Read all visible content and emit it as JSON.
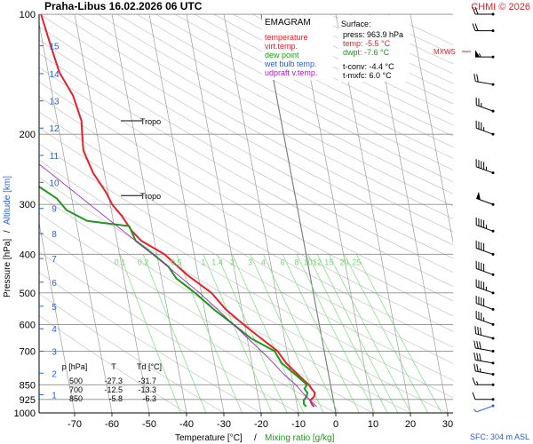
{
  "header": {
    "station_date": "Praha-Libus    16.02.2026 06 UTC",
    "credit": "CHMI © 2026"
  },
  "chart_data": {
    "type": "line",
    "diagram": "skew-T log-p",
    "legend": {
      "title": "EMAGRAM",
      "items": [
        {
          "label": "temperature",
          "color": "#e8202a"
        },
        {
          "label": "virt.temp.",
          "color": "#e8202a"
        },
        {
          "label": "dew point",
          "color": "#1a9a1a"
        },
        {
          "label": "wet bulb temp.",
          "color": "#2a5fd8"
        },
        {
          "label": "udpraft v.temp.",
          "color": "#a020c0"
        }
      ]
    },
    "surface_box": {
      "title": "Surface:",
      "rows": [
        {
          "text": "press: 963.9 hPa",
          "color": "#000000"
        },
        {
          "text": "temp: -5.5 °C",
          "color": "#e8202a"
        },
        {
          "text": "dwpt: -7.6 °C",
          "color": "#1a9a1a"
        },
        {
          "text": "t-conv: -4.4 °C",
          "color": "#000000"
        },
        {
          "text": "t-mxfc: 6.0 °C",
          "color": "#000000"
        }
      ]
    },
    "x_axis": {
      "label": "Temperature [°C]",
      "separator": "/",
      "label2": "Mixing ratio [g/kg]",
      "range": [
        -80,
        35
      ],
      "ticks": [
        -70,
        -60,
        -50,
        -40,
        -30,
        -20,
        -10,
        0,
        10,
        20,
        30
      ]
    },
    "y_axis": {
      "label": "Pressure [hPa]",
      "separator": "/",
      "label2": "Altitude [km]",
      "scale": "log",
      "range": [
        1000,
        100
      ],
      "ticks": [
        100,
        200,
        300,
        400,
        500,
        600,
        700,
        850,
        925,
        1000
      ],
      "altitude_km": [
        {
          "km": 1,
          "p": 900
        },
        {
          "km": 2,
          "p": 795
        },
        {
          "km": 3,
          "p": 700
        },
        {
          "km": 4,
          "p": 615
        },
        {
          "km": 5,
          "p": 540
        },
        {
          "km": 6,
          "p": 470
        },
        {
          "km": 7,
          "p": 410
        },
        {
          "km": 8,
          "p": 355
        },
        {
          "km": 9,
          "p": 307
        },
        {
          "km": 10,
          "p": 264
        },
        {
          "km": 11,
          "p": 226
        },
        {
          "km": 12,
          "p": 193
        },
        {
          "km": 13,
          "p": 165
        },
        {
          "km": 14,
          "p": 141
        },
        {
          "km": 15,
          "p": 120
        }
      ]
    },
    "mixing_ratio_labels": {
      "values": [
        "0.1",
        "0.2",
        "0.5",
        "1",
        "1.4",
        "2",
        "3",
        "4",
        "6",
        "8",
        "10",
        "12",
        "15",
        "20",
        "25"
      ],
      "pressure": 400
    },
    "tropopause": [
      {
        "label": "Tropo",
        "p": 185
      },
      {
        "label": "Tropo",
        "p": 285
      }
    ],
    "mxws_label": "MXWS",
    "table": {
      "headers": [
        "p [hPa]",
        "T",
        "Td [°C]"
      ],
      "rows": [
        [
          "500",
          "-27.3",
          "-31.7"
        ],
        [
          "700",
          "-12.5",
          "-13.3"
        ],
        [
          "850",
          "-5.8",
          "-6.3"
        ]
      ]
    },
    "sfc_label": "SFC: 304 m ASL",
    "series": [
      {
        "name": "temperature",
        "color": "#e8202a",
        "points": [
          [
            964,
            -5.5
          ],
          [
            950,
            -6.0
          ],
          [
            930,
            -6.2
          ],
          [
            910,
            -5.0
          ],
          [
            890,
            -4.6
          ],
          [
            870,
            -5.3
          ],
          [
            850,
            -5.8
          ],
          [
            800,
            -8.3
          ],
          [
            750,
            -10.8
          ],
          [
            700,
            -12.5
          ],
          [
            650,
            -16.3
          ],
          [
            600,
            -20.3
          ],
          [
            550,
            -24.3
          ],
          [
            500,
            -27.3
          ],
          [
            450,
            -33.0
          ],
          [
            400,
            -38.0
          ],
          [
            370,
            -43.5
          ],
          [
            350,
            -45.5
          ],
          [
            320,
            -47.5
          ],
          [
            300,
            -49.5
          ],
          [
            280,
            -50.5
          ],
          [
            250,
            -53.0
          ],
          [
            220,
            -54.5
          ],
          [
            200,
            -54.0
          ],
          [
            185,
            -53.5
          ],
          [
            160,
            -54.5
          ],
          [
            140,
            -57.0
          ],
          [
            120,
            -58.0
          ],
          [
            100,
            -59.0
          ]
        ]
      },
      {
        "name": "dew point",
        "color": "#1a9a1a",
        "points": [
          [
            964,
            -7.6
          ],
          [
            950,
            -8.1
          ],
          [
            930,
            -8.0
          ],
          [
            910,
            -7.0
          ],
          [
            890,
            -6.6
          ],
          [
            870,
            -7.2
          ],
          [
            850,
            -6.3
          ],
          [
            800,
            -9.0
          ],
          [
            750,
            -12.0
          ],
          [
            700,
            -13.3
          ],
          [
            650,
            -19.0
          ],
          [
            600,
            -23.0
          ],
          [
            550,
            -27.5
          ],
          [
            500,
            -31.7
          ],
          [
            460,
            -36.0
          ],
          [
            430,
            -37.5
          ],
          [
            400,
            -41.0
          ],
          [
            370,
            -45.0
          ],
          [
            340,
            -46.0
          ],
          [
            330,
            -57.0
          ],
          [
            310,
            -62.0
          ],
          [
            290,
            -64.0
          ],
          [
            250,
            -73.0
          ],
          [
            220,
            -80.0
          ]
        ]
      },
      {
        "name": "udpraft v.temp.",
        "color": "#a020c0",
        "points": [
          [
            964,
            -4.8
          ],
          [
            900,
            -7.5
          ],
          [
            850,
            -9.3
          ],
          [
            800,
            -12.0
          ],
          [
            750,
            -14.2
          ],
          [
            700,
            -16.8
          ],
          [
            650,
            -19.8
          ],
          [
            600,
            -23.0
          ],
          [
            550,
            -26.5
          ],
          [
            500,
            -30.5
          ],
          [
            450,
            -35.5
          ],
          [
            400,
            -41.0
          ],
          [
            350,
            -47.8
          ],
          [
            300,
            -55.5
          ],
          [
            250,
            -64.5
          ],
          [
            220,
            -71.0
          ],
          [
            200,
            -75.0
          ]
        ]
      }
    ],
    "wind_barbs": [
      {
        "p": 960,
        "dir": 250,
        "kt": 5
      },
      {
        "p": 925,
        "dir": 270,
        "kt": 10
      },
      {
        "p": 850,
        "dir": 270,
        "kt": 15
      },
      {
        "p": 800,
        "dir": 280,
        "kt": 25
      },
      {
        "p": 750,
        "dir": 280,
        "kt": 30
      },
      {
        "p": 700,
        "dir": 280,
        "kt": 30
      },
      {
        "p": 650,
        "dir": 285,
        "kt": 30
      },
      {
        "p": 600,
        "dir": 290,
        "kt": 35
      },
      {
        "p": 550,
        "dir": 290,
        "kt": 40
      },
      {
        "p": 500,
        "dir": 290,
        "kt": 45
      },
      {
        "p": 450,
        "dir": 290,
        "kt": 40
      },
      {
        "p": 400,
        "dir": 290,
        "kt": 40
      },
      {
        "p": 350,
        "dir": 290,
        "kt": 45
      },
      {
        "p": 300,
        "dir": 290,
        "kt": 50
      },
      {
        "p": 250,
        "dir": 290,
        "kt": 45
      },
      {
        "p": 200,
        "dir": 290,
        "kt": 35
      },
      {
        "p": 175,
        "dir": 290,
        "kt": 25
      },
      {
        "p": 150,
        "dir": 280,
        "kt": 20
      },
      {
        "p": 128,
        "dir": 270,
        "kt": 55
      },
      {
        "p": 110,
        "dir": 270,
        "kt": 20
      },
      {
        "p": 100,
        "dir": 270,
        "kt": 20
      }
    ],
    "surface_wind_marker": {
      "label": "",
      "color": "#2a5fd8"
    }
  }
}
